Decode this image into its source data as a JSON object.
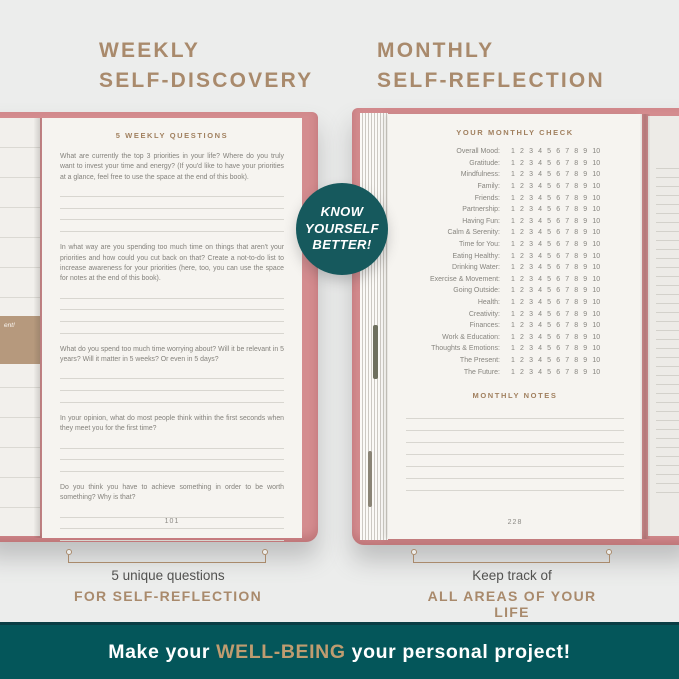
{
  "colors": {
    "background": "#ecedec",
    "heading_tan": "#a98a6c",
    "cover_pink": "#d48c8f",
    "page_cream": "#f6f4f0",
    "teal_banner": "#04565a",
    "teal_badge": "#16595d",
    "banner_gold": "#bf9c70",
    "body_gray": "#84827c"
  },
  "headings": {
    "left": {
      "line1": "WEEKLY",
      "line2": "SELF-DISCOVERY"
    },
    "right": {
      "line1": "MONTHLY",
      "line2": "SELF-REFLECTION"
    }
  },
  "badge": {
    "lines": [
      "KNOW",
      "YOURSELF",
      "BETTER!"
    ]
  },
  "left_page": {
    "title": "5 WEEKLY QUESTIONS",
    "questions": [
      {
        "text": "What are currently the top 3 priorities in your life? Where do you truly want to invest your time and energy? (If you'd like to have your priorities at a glance, feel free to use the space at the end of this book).",
        "lines": 4
      },
      {
        "text": "In what way are you spending too much time on things that aren't your priorities and how could you cut back on that? Create a not-to-do list to increase awareness for your priorities (here, too, you can use the space for notes at the end of this book).",
        "lines": 4
      },
      {
        "text": "What do you spend too much time worrying about? Will it be relevant in 5 years? Will it matter in 5 weeks? Or even in 5 days?",
        "lines": 3
      },
      {
        "text": "In your opinion, what do most people think within the first seconds when they meet you for the first time?",
        "lines": 3
      },
      {
        "text": "Do you think you have to achieve something in order to be worth something? Why is that?",
        "lines": 3
      }
    ],
    "page_number": "101",
    "quote_fragment": "ent!"
  },
  "right_page": {
    "title": "YOUR MONTHLY CHECK",
    "scale": "1 2 3 4 5 6 7 8 9 10",
    "items": [
      "Overall Mood:",
      "Gratitude:",
      "Mindfulness:",
      "Family:",
      "Friends:",
      "Partnership:",
      "Having Fun:",
      "Calm & Serenity:",
      "Time for You:",
      "Eating Healthy:",
      "Drinking Water:",
      "Exercise & Movement:",
      "Going Outside:",
      "Health:",
      "Creativity:",
      "Finances:",
      "Work & Education:",
      "Thoughts & Emotions:",
      "The Present:",
      "The Future:"
    ],
    "notes_title": "MONTHLY NOTES",
    "notes_lines": 7,
    "page_number": "228"
  },
  "captions": {
    "left": {
      "line1": "5 unique questions",
      "line2": "FOR SELF-REFLECTION"
    },
    "right": {
      "line1": "Keep track of",
      "line2": "ALL AREAS OF YOUR LIFE"
    }
  },
  "banner": {
    "prefix": "Make your ",
    "highlight": "WELL-BEING",
    "suffix": " your personal project!"
  }
}
